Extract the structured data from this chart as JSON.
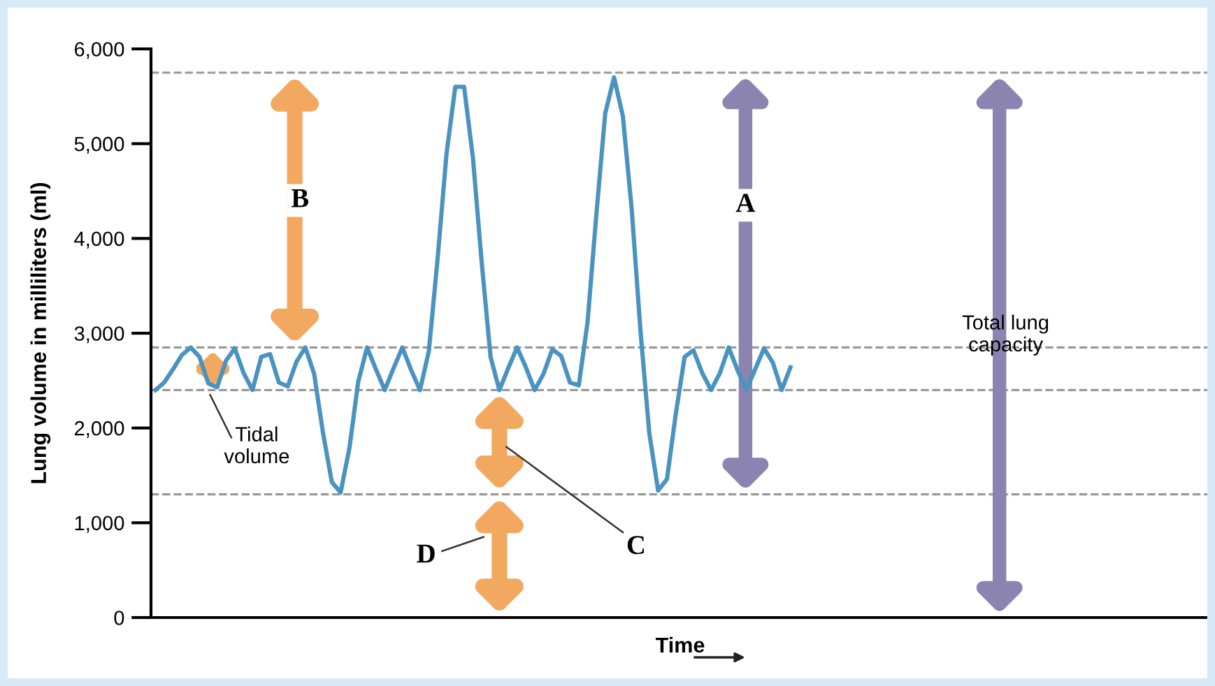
{
  "chart_data": {
    "type": "line",
    "ylabel": "Lung volume in milliliters (ml)",
    "xlabel": "Time",
    "categories": [
      null,
      null,
      null,
      null,
      null,
      null,
      null,
      null,
      null,
      null,
      null,
      null,
      null,
      null,
      null,
      null,
      null,
      null,
      null,
      null,
      null,
      null,
      null,
      null,
      null,
      null,
      null,
      null,
      null,
      null,
      null,
      null,
      null,
      null,
      null,
      null,
      null,
      null,
      null,
      null,
      null,
      null,
      null,
      null,
      null,
      null,
      null,
      null,
      null,
      null,
      null,
      null,
      null,
      null,
      null,
      null,
      null,
      null,
      null,
      null,
      null,
      null,
      null,
      null,
      null,
      null,
      null,
      null,
      null,
      null,
      null,
      null,
      null,
      null,
      null,
      null,
      null,
      null,
      null,
      null,
      null,
      null,
      null,
      null,
      null,
      null,
      null,
      null,
      null,
      null,
      null,
      null,
      null,
      null,
      null,
      null,
      null,
      null,
      null,
      null,
      null,
      null,
      null,
      null,
      null,
      null,
      null,
      null,
      null,
      null,
      null,
      null,
      null,
      null,
      null,
      null,
      null,
      null,
      null,
      null
    ],
    "series": [
      {
        "color": "#4a93c0",
        "values": [
          2400,
          2480,
          2620,
          2770,
          2850,
          2750,
          2470,
          2430,
          2710,
          2840,
          2580,
          2400,
          2750,
          2780,
          2480,
          2440,
          2700,
          2850,
          2570,
          1950,
          1430,
          1320,
          1790,
          2490,
          2850,
          2620,
          2400,
          2630,
          2850,
          2610,
          2400,
          2810,
          3790,
          4890,
          5600,
          5600,
          4850,
          3740,
          2750,
          2400,
          2630,
          2850,
          2640,
          2400,
          2570,
          2830,
          2760,
          2480,
          2450,
          3120,
          4260,
          5320,
          5700,
          5290,
          4310,
          3020,
          1940,
          1340,
          1460,
          2150,
          2750,
          2820,
          2580,
          2400,
          2580,
          2850,
          2610,
          2400,
          2620,
          2840,
          2690,
          2400,
          2640,
          null,
          null,
          null,
          null,
          null,
          null,
          null,
          null,
          null,
          null,
          null,
          null,
          null,
          null,
          null,
          null,
          null,
          null,
          null,
          null,
          null,
          null,
          null,
          null,
          null,
          null,
          null,
          null,
          null,
          null,
          null,
          null,
          null,
          null,
          null,
          null,
          null,
          null,
          null,
          null,
          null,
          null,
          null,
          null,
          null,
          null,
          null
        ]
      }
    ],
    "ylim": [
      0,
      6000
    ],
    "yticks": [
      {
        "value": 0,
        "label": "0"
      },
      {
        "value": 1000,
        "label": "1,000"
      },
      {
        "value": 2000,
        "label": "2,000"
      },
      {
        "value": 3000,
        "label": "3,000"
      },
      {
        "value": 4000,
        "label": "4,000"
      },
      {
        "value": 5000,
        "label": "5,000"
      },
      {
        "value": 6000,
        "label": "6,000"
      }
    ],
    "tick_labels": "y",
    "grid": false,
    "marker": "none",
    "line_style": "solid",
    "ref_lines": [
      {
        "axis": "y",
        "value": 5750,
        "color": "#999999",
        "line_style": "dashed"
      },
      {
        "axis": "y",
        "value": 2850,
        "color": "#999999",
        "line_style": "dashed"
      },
      {
        "axis": "y",
        "value": 2400,
        "color": "#999999",
        "line_style": "dashed"
      },
      {
        "axis": "y",
        "value": 1300,
        "color": "#999999",
        "line_style": "dashed"
      }
    ],
    "annotations": [
      "B",
      "A",
      "Tidal\nvolume",
      "C",
      "D",
      "Total lung\ncapacity"
    ]
  }
}
